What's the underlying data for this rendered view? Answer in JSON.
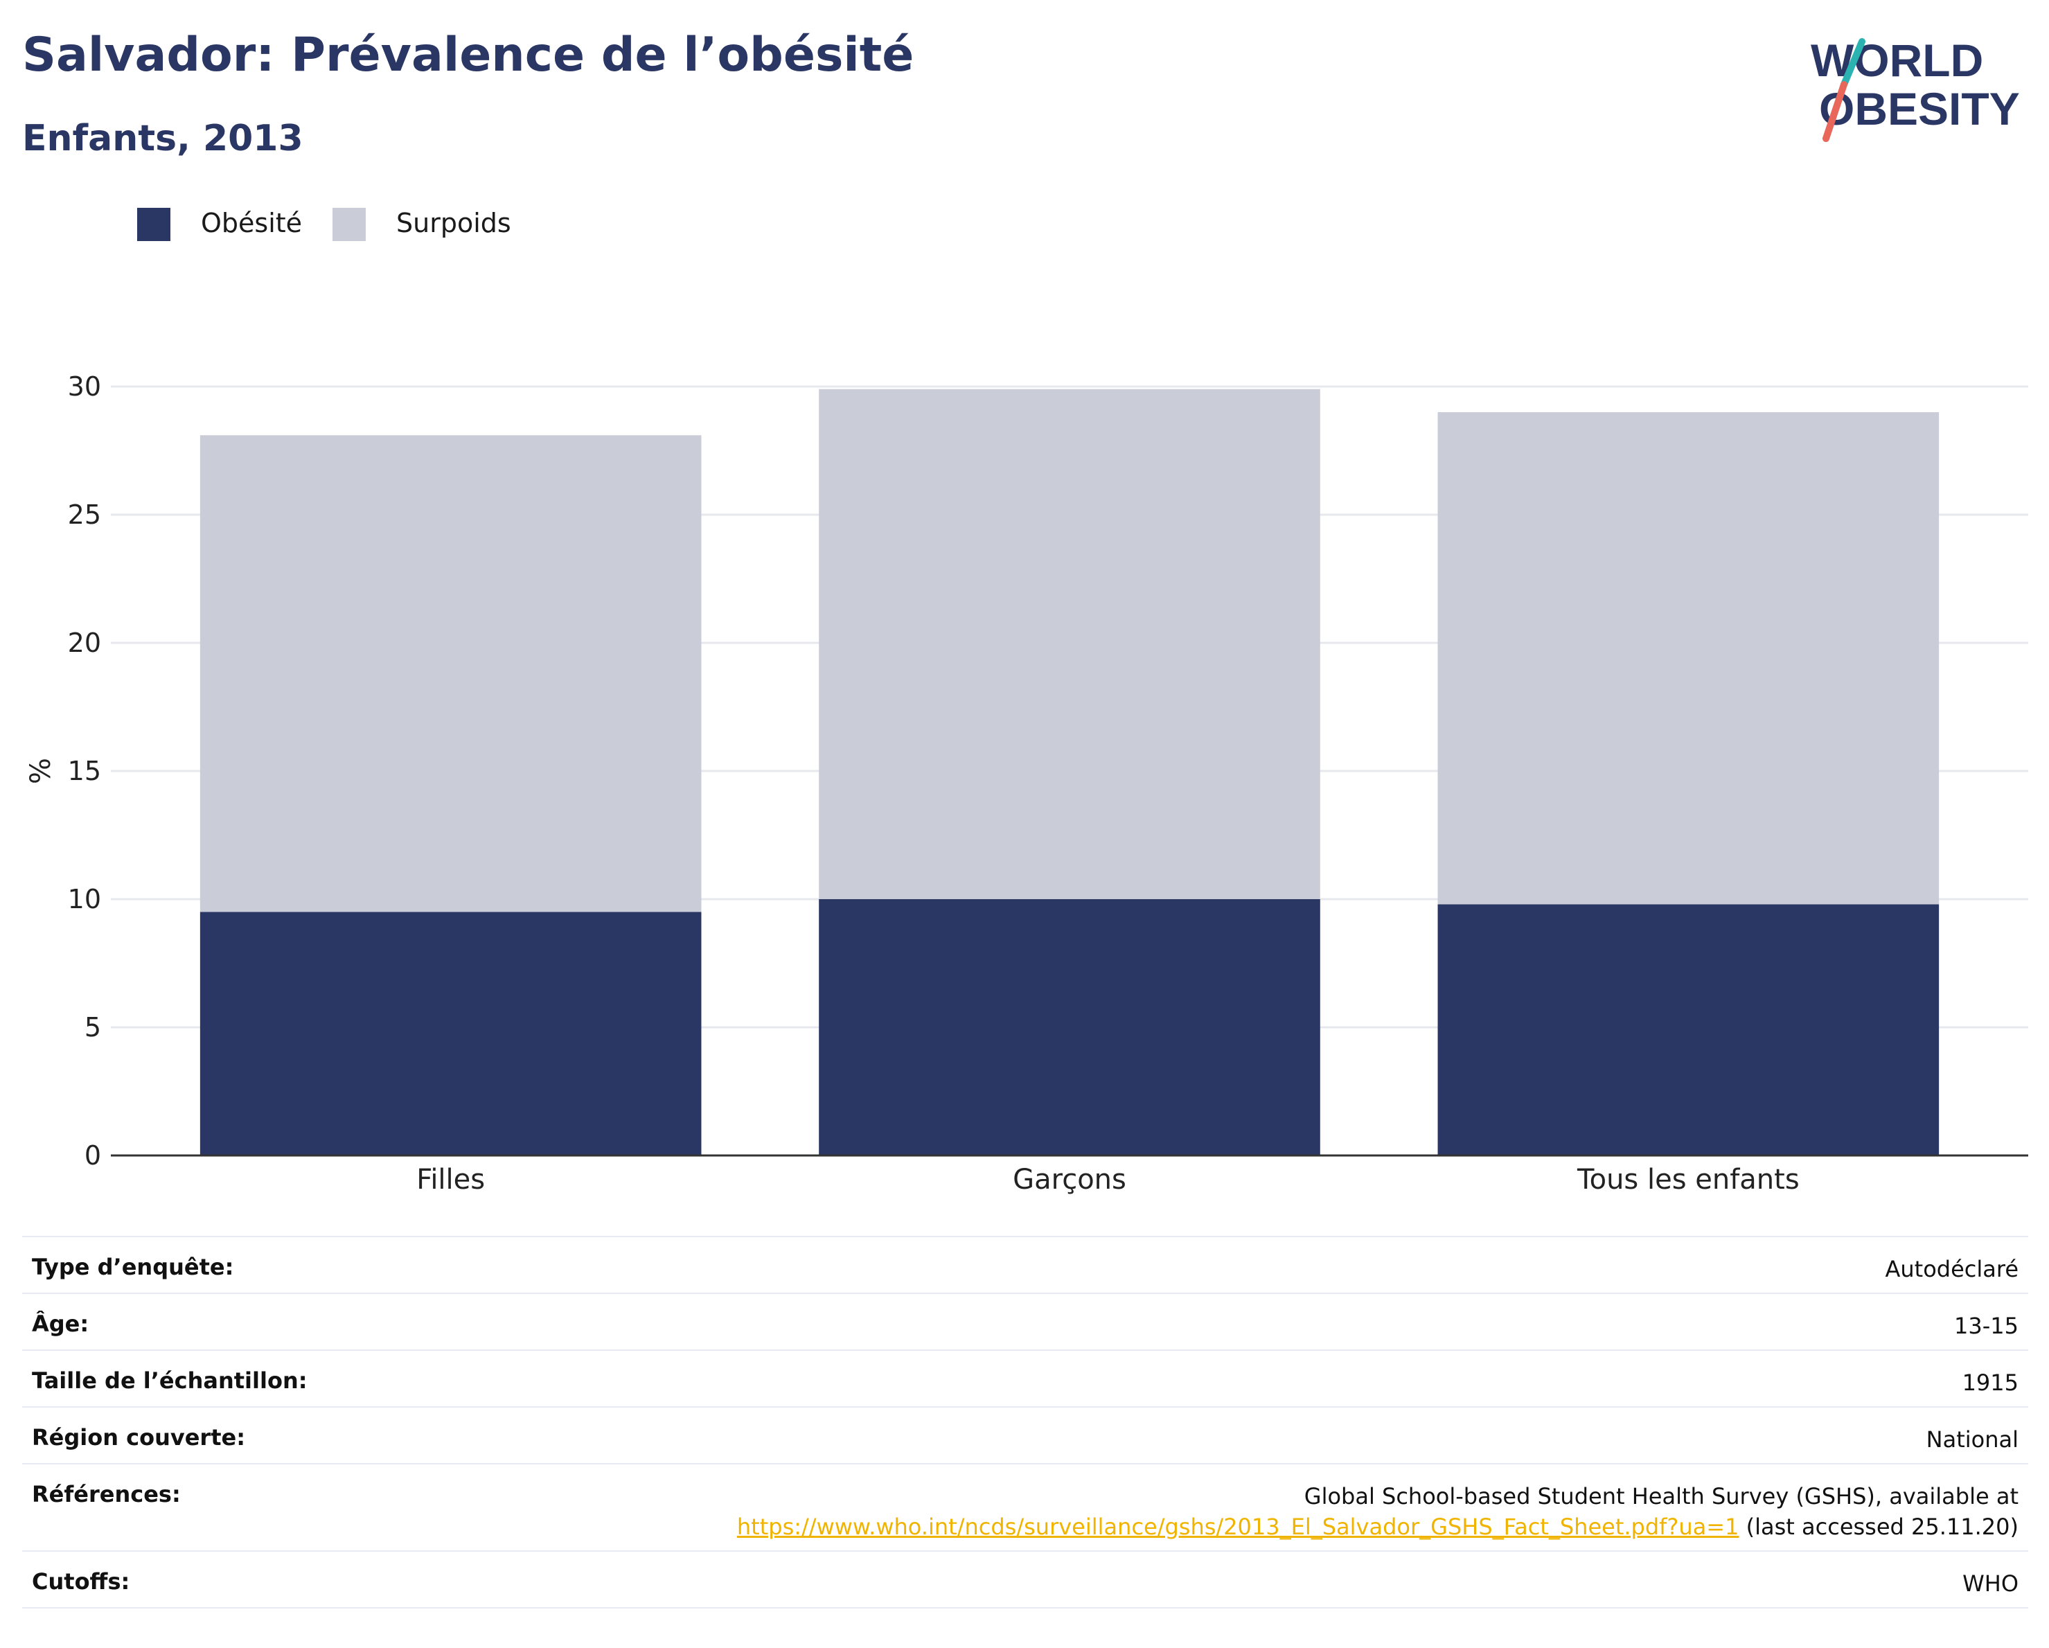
{
  "header": {
    "title": "Salvador: Prévalence de l’obésité",
    "subtitle": "Enfants, 2013"
  },
  "logo": {
    "line1": "WORLD",
    "line2": "OBESITY",
    "colors": {
      "text": "#2a3664",
      "slash_top": "#2bb3b1",
      "slash_bottom": "#e8675a"
    }
  },
  "legend": [
    {
      "label": "Obésité",
      "color": "#2a3664"
    },
    {
      "label": "Surpoids",
      "color": "#caccd8"
    }
  ],
  "chart_data": {
    "type": "bar",
    "stacked": true,
    "categories": [
      "Filles",
      "Garçons",
      "Tous les enfants"
    ],
    "series": [
      {
        "name": "Obésité",
        "values": [
          9.5,
          10.0,
          9.8
        ],
        "color": "#2a3664"
      },
      {
        "name": "Surpoids",
        "values": [
          18.6,
          19.9,
          19.2
        ],
        "color": "#caccd8"
      }
    ],
    "ylabel": "%",
    "ylim": [
      0,
      30
    ],
    "yticks": [
      0,
      5,
      10,
      15,
      20,
      25,
      30
    ],
    "grid": true,
    "legend_position": "top-left"
  },
  "info": {
    "survey_type": {
      "label": "Type d’enquête:",
      "value": "Autodéclaré"
    },
    "age": {
      "label": "Âge:",
      "value": "13-15"
    },
    "sample_size": {
      "label": "Taille de l’échantillon:",
      "value": "1915"
    },
    "region": {
      "label": "Région couverte:",
      "value": "National"
    },
    "references": {
      "label": "Références:",
      "line1": "Global School-based Student Health Survey (GSHS), available at",
      "link": "https://www.who.int/ncds/surveillance/gshs/2013_El_Salvador_GSHS_Fact_Sheet.pdf?ua=1",
      "suffix": " (last accessed 25.11.20)"
    },
    "cutoffs": {
      "label": "Cutoffs:",
      "value": "WHO"
    }
  }
}
